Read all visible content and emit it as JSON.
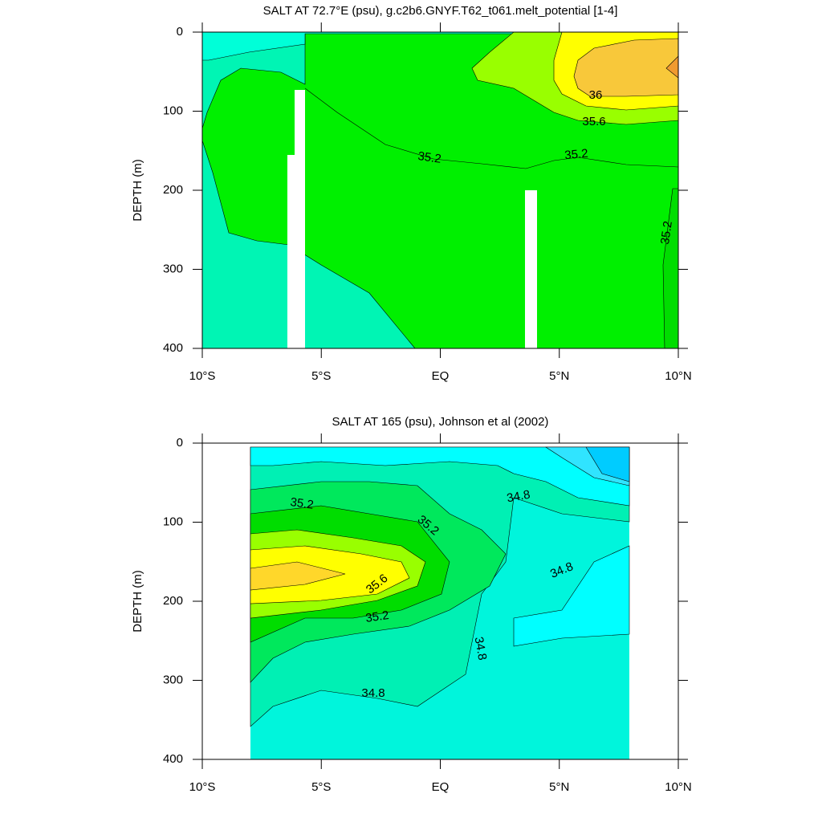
{
  "chart_data": [
    {
      "type": "contour",
      "title": "SALT AT  72.7°E (psu), g.c2b6.GNYF.T62_t061.melt_potential [1-4]",
      "ylabel": "DEPTH (m)",
      "xlim": [
        -10,
        10
      ],
      "ylim": [
        400,
        0
      ],
      "xticks": [
        {
          "value": -10,
          "label": "10°S"
        },
        {
          "value": -5,
          "label": "5°S"
        },
        {
          "value": 0,
          "label": "EQ"
        },
        {
          "value": 5,
          "label": "5°N"
        },
        {
          "value": 10,
          "label": "10°N"
        }
      ],
      "yticks": [
        0,
        100,
        200,
        300,
        400
      ],
      "contour_labels": [
        36,
        35.6,
        35.2,
        35.2,
        35.2
      ]
    },
    {
      "type": "contour",
      "title": "SALT AT 165 (psu), Johnson et al (2002)",
      "ylabel": "DEPTH (m)",
      "xlim": [
        -10,
        10
      ],
      "ylim": [
        400,
        0
      ],
      "xticks": [
        {
          "value": -10,
          "label": "10°S"
        },
        {
          "value": -5,
          "label": "5°S"
        },
        {
          "value": 0,
          "label": "EQ"
        },
        {
          "value": 5,
          "label": "5°N"
        },
        {
          "value": 10,
          "label": "10°N"
        }
      ],
      "yticks": [
        0,
        100,
        200,
        300,
        400
      ],
      "contour_labels": [
        35.2,
        34.8,
        35.2,
        34.8,
        35.6,
        35.2,
        34.8,
        34.8
      ]
    }
  ]
}
